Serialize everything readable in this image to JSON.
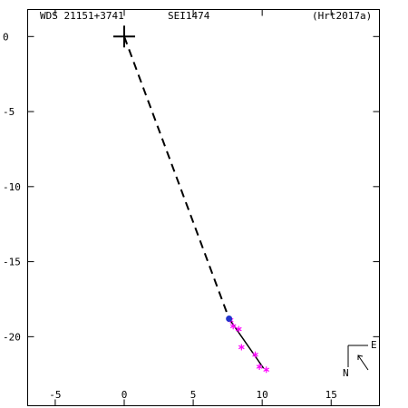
{
  "header": {
    "wds_id": "WDS 21151+3741",
    "discoverer": "SEI1474",
    "reference": "(Hrt2017a)"
  },
  "compass": {
    "east_label": "E",
    "north_label": "N"
  },
  "colors": {
    "observation": "#ff00ff",
    "latest_point": "#2233cc",
    "orbit_line": "#000000",
    "dashed_line": "#000000"
  },
  "chart_data": {
    "type": "scatter",
    "xlim": [
      -7,
      18.5
    ],
    "ylim": [
      -24.6,
      1.8
    ],
    "x_ticks": [
      {
        "value": -5,
        "label": "-5"
      },
      {
        "value": 0,
        "label": "0"
      },
      {
        "value": 5,
        "label": "5"
      },
      {
        "value": 10,
        "label": "10"
      },
      {
        "value": 15,
        "label": "15"
      }
    ],
    "y_ticks": [
      {
        "value": 0,
        "label": "0"
      },
      {
        "value": -5,
        "label": "-5"
      },
      {
        "value": -10,
        "label": "-10"
      },
      {
        "value": -15,
        "label": "-15"
      },
      {
        "value": -20,
        "label": "-20"
      }
    ],
    "primary": {
      "x": 0,
      "y": 0
    },
    "dashed_line": [
      {
        "x": 0,
        "y": 0
      },
      {
        "x": 7.6,
        "y": -18.8
      }
    ],
    "orbit_line": [
      {
        "x": 7.6,
        "y": -18.8
      },
      {
        "x": 10.1,
        "y": -22.1
      }
    ],
    "observations": [
      {
        "x": 7.7,
        "y": -18.9
      },
      {
        "x": 7.9,
        "y": -19.3
      },
      {
        "x": 8.3,
        "y": -19.5
      },
      {
        "x": 8.5,
        "y": -20.7
      },
      {
        "x": 9.5,
        "y": -21.2
      },
      {
        "x": 9.8,
        "y": -22.0
      },
      {
        "x": 10.3,
        "y": -22.2
      }
    ],
    "latest": {
      "x": 7.6,
      "y": -18.8
    }
  }
}
